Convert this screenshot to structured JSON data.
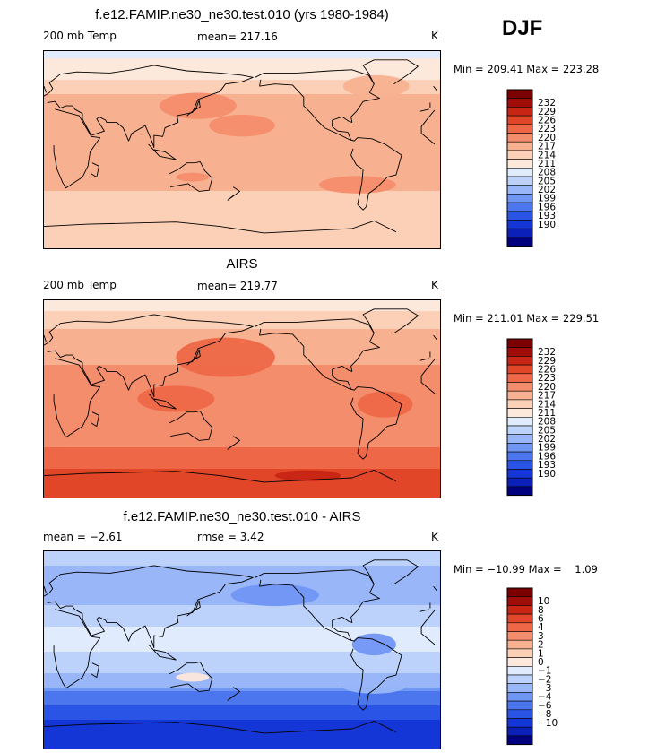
{
  "season": "DJF",
  "palette": {
    "abs": [
      "#00007f",
      "#0a20b8",
      "#1536d6",
      "#2a54e6",
      "#4c76ee",
      "#7096f4",
      "#98b6f8",
      "#bcd2fb",
      "#e0ecfd",
      "#fde9dc",
      "#fbd0b7",
      "#f8b190",
      "#f48d6b",
      "#ee6848",
      "#e14628",
      "#c82514",
      "#a00c08",
      "#7d0000"
    ],
    "diff": [
      "#00007f",
      "#0a20b8",
      "#1536d6",
      "#2a54e6",
      "#4c76ee",
      "#7096f4",
      "#98b6f8",
      "#bcd2fb",
      "#e0ecfd",
      "#fde9dc",
      "#fbd0b7",
      "#f8b190",
      "#f48d6b",
      "#ee6848",
      "#e14628",
      "#c82514",
      "#a00c08",
      "#7d0000"
    ]
  },
  "panels": [
    {
      "title": "f.e12.FAMIP.ne30_ne30.test.010 (yrs 1980-1984)",
      "left_label": "200 mb Temp",
      "mid_label": "mean= 217.16",
      "units": "K",
      "stats": "Min = 209.41 Max = 223.28",
      "colorbar_labels": [
        "232",
        "229",
        "226",
        "223",
        "220",
        "217",
        "214",
        "211",
        "208",
        "205",
        "202",
        "199",
        "196",
        "193",
        "190"
      ]
    },
    {
      "title": "AIRS",
      "left_label": "200 mb Temp",
      "mid_label": "mean= 219.77",
      "units": "K",
      "stats": "Min = 211.01 Max = 229.51",
      "colorbar_labels": [
        "232",
        "229",
        "226",
        "223",
        "220",
        "217",
        "214",
        "211",
        "208",
        "205",
        "202",
        "199",
        "196",
        "193",
        "190"
      ]
    },
    {
      "title": "f.e12.FAMIP.ne30_ne30.test.010 - AIRS",
      "left_label": "mean =   −2.61",
      "mid_label": "rmse =    3.42",
      "units": "K",
      "stats": "Min = −10.99 Max =    1.09",
      "colorbar_labels": [
        "10",
        "8",
        "6",
        "4",
        "3",
        "2",
        "1",
        "0",
        "−1",
        "−2",
        "−3",
        "−4",
        "−6",
        "−8",
        "−10"
      ]
    }
  ],
  "chart_data": [
    {
      "type": "heatmap",
      "title": "f.e12.FAMIP.ne30_ne30.test.010 (yrs 1980-1984)",
      "variable": "200 mb Temp",
      "units": "K",
      "mean": 217.16,
      "min": 209.41,
      "max": 223.28,
      "levels": [
        190,
        193,
        196,
        199,
        202,
        205,
        208,
        211,
        214,
        217,
        220,
        223,
        226,
        229,
        232
      ],
      "lon_range": [
        0,
        360
      ],
      "lat_range": [
        -90,
        90
      ],
      "zonal_profile": {
        "lat": [
          90,
          70,
          50,
          30,
          10,
          -10,
          -30,
          -50,
          -70,
          -90
        ],
        "value": [
          210,
          213,
          217,
          218,
          218,
          218,
          218,
          215,
          215,
          215
        ]
      },
      "blobs": [
        {
          "lon": 140,
          "lat": 40,
          "rx": 35,
          "ry": 12,
          "value": 221
        },
        {
          "lon": 180,
          "lat": 22,
          "rx": 30,
          "ry": 10,
          "value": 220
        },
        {
          "lon": 135,
          "lat": -25,
          "rx": 15,
          "ry": 4,
          "value": 221
        },
        {
          "lon": 302,
          "lat": 58,
          "rx": 30,
          "ry": 10,
          "value": 217
        },
        {
          "lon": 285,
          "lat": -32,
          "rx": 35,
          "ry": 8,
          "value": 220
        }
      ]
    },
    {
      "type": "heatmap",
      "title": "AIRS",
      "variable": "200 mb Temp",
      "units": "K",
      "mean": 219.77,
      "min": 211.01,
      "max": 229.51,
      "levels": [
        190,
        193,
        196,
        199,
        202,
        205,
        208,
        211,
        214,
        217,
        220,
        223,
        226,
        229,
        232
      ],
      "lon_range": [
        0,
        360
      ],
      "lat_range": [
        -90,
        90
      ],
      "zonal_profile": {
        "lat": [
          90,
          70,
          50,
          30,
          10,
          -10,
          -30,
          -50,
          -70,
          -90
        ],
        "value": [
          212,
          216,
          219,
          220,
          220,
          220,
          220,
          224,
          227,
          227
        ]
      },
      "blobs": [
        {
          "lon": 165,
          "lat": 38,
          "rx": 45,
          "ry": 18,
          "value": 223
        },
        {
          "lon": 120,
          "lat": 0,
          "rx": 35,
          "ry": 12,
          "value": 223
        },
        {
          "lon": 310,
          "lat": -5,
          "rx": 25,
          "ry": 12,
          "value": 223
        },
        {
          "lon": 240,
          "lat": -70,
          "rx": 30,
          "ry": 5,
          "value": 229
        }
      ]
    },
    {
      "type": "heatmap",
      "title": "f.e12.FAMIP.ne30_ne30.test.010 - AIRS",
      "units": "K",
      "mean": -2.61,
      "rmse": 3.42,
      "min": -10.99,
      "max": 1.09,
      "levels": [
        -10,
        -8,
        -6,
        -4,
        -3,
        -2,
        -1,
        0,
        1,
        2,
        3,
        4,
        6,
        8,
        10
      ],
      "lon_range": [
        0,
        360
      ],
      "lat_range": [
        -90,
        90
      ],
      "zonal_profile": {
        "lat": [
          90,
          70,
          50,
          30,
          10,
          -10,
          -30,
          -50,
          -70,
          -90
        ],
        "value": [
          -1,
          -2.5,
          -2.5,
          -1.5,
          -0.5,
          -1.5,
          -2.5,
          -6,
          -9,
          -9
        ]
      },
      "blobs": [
        {
          "lon": 135,
          "lat": -25,
          "rx": 15,
          "ry": 4,
          "value": 0.5
        },
        {
          "lon": 210,
          "lat": 50,
          "rx": 40,
          "ry": 10,
          "value": -3.5
        },
        {
          "lon": 300,
          "lat": 5,
          "rx": 20,
          "ry": 10,
          "value": -3.5
        },
        {
          "lon": 300,
          "lat": -32,
          "rx": 30,
          "ry": 8,
          "value": -2.5
        }
      ]
    }
  ]
}
